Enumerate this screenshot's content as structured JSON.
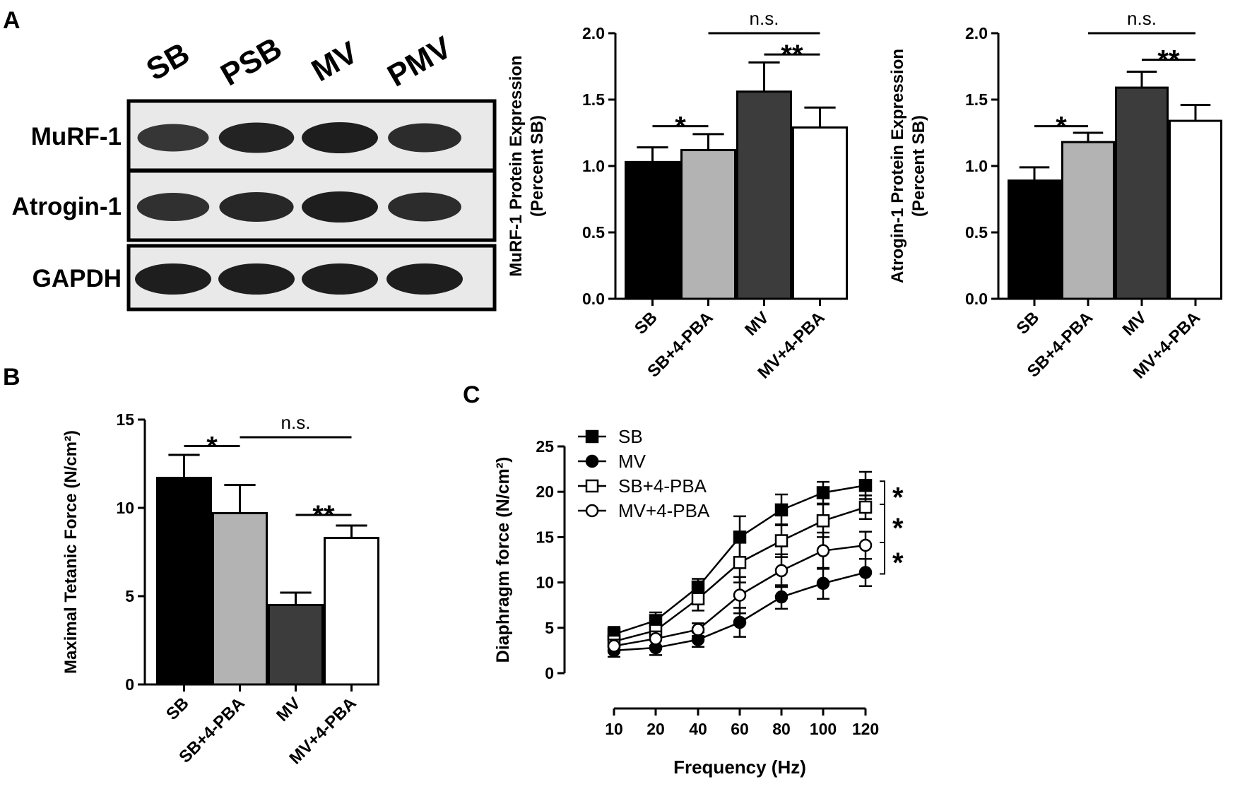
{
  "panels": {
    "a": "A",
    "b": "B",
    "c": "C"
  },
  "colors": {
    "black": "#000000",
    "light_gray": "#b3b3b3",
    "dark_gray": "#3c3c3c",
    "white": "#ffffff",
    "blot_background": "#e9e9e9",
    "band": "#1e1e1e"
  },
  "blot": {
    "lanes": [
      "SB",
      "PSB",
      "MV",
      "PMV"
    ],
    "rows": [
      {
        "label": "MuRF-1",
        "bands": [
          0.75,
          0.95,
          1.0,
          0.85
        ]
      },
      {
        "label": "Atrogin-1",
        "bands": [
          0.8,
          0.9,
          1.0,
          0.85
        ]
      },
      {
        "label": "GAPDH",
        "bands": [
          1.0,
          1.0,
          1.0,
          1.0
        ]
      }
    ]
  },
  "chart_data": [
    {
      "id": "murf1",
      "type": "bar",
      "ylabel": [
        "MuRF-1 Protein Expression",
        "(Percent SB)"
      ],
      "ylim": [
        0,
        2.0
      ],
      "yticks": [
        "0.0",
        "0.5",
        "1.0",
        "1.5",
        "2.0"
      ],
      "categories": [
        "SB",
        "SB+4-PBA",
        "MV",
        "MV+4-PBA"
      ],
      "values": [
        1.03,
        1.12,
        1.56,
        1.29
      ],
      "errors": [
        0.11,
        0.12,
        0.22,
        0.15
      ],
      "fills": [
        "#000000",
        "#b3b3b3",
        "#3c3c3c",
        "#ffffff"
      ],
      "annotations": [
        {
          "from": 0,
          "to": 1,
          "y": 1.3,
          "label": "*"
        },
        {
          "from": 2,
          "to": 3,
          "y": 1.84,
          "label": "**"
        },
        {
          "from": 1,
          "to": 3,
          "y": 2.0,
          "label": "n.s."
        }
      ]
    },
    {
      "id": "atrogin1",
      "type": "bar",
      "ylabel": [
        "Atrogin-1 Protein Expression",
        "(Percent SB)"
      ],
      "ylim": [
        0,
        2.0
      ],
      "yticks": [
        "0.0",
        "0.5",
        "1.0",
        "1.5",
        "2.0"
      ],
      "categories": [
        "SB",
        "SB+4-PBA",
        "MV",
        "MV+4-PBA"
      ],
      "values": [
        0.89,
        1.18,
        1.59,
        1.34
      ],
      "errors": [
        0.1,
        0.07,
        0.12,
        0.12
      ],
      "fills": [
        "#000000",
        "#b3b3b3",
        "#3c3c3c",
        "#ffffff"
      ],
      "annotations": [
        {
          "from": 0,
          "to": 1,
          "y": 1.3,
          "label": "*"
        },
        {
          "from": 2,
          "to": 3,
          "y": 1.8,
          "label": "**"
        },
        {
          "from": 1,
          "to": 3,
          "y": 2.0,
          "label": "n.s."
        }
      ]
    },
    {
      "id": "tetanic",
      "type": "bar",
      "ylabel": [
        "Maximal Tetanic Force (N/cm²)"
      ],
      "ylim": [
        0,
        15
      ],
      "yticks": [
        "0",
        "5",
        "10",
        "15"
      ],
      "categories": [
        "SB",
        "SB+4-PBA",
        "MV",
        "MV+4-PBA"
      ],
      "values": [
        11.7,
        9.7,
        4.5,
        8.3
      ],
      "errors": [
        1.3,
        1.6,
        0.7,
        0.7
      ],
      "fills": [
        "#000000",
        "#b3b3b3",
        "#3c3c3c",
        "#ffffff"
      ],
      "annotations": [
        {
          "from": 0,
          "to": 1,
          "y": 13.5,
          "label": "*"
        },
        {
          "from": 2,
          "to": 3,
          "y": 9.6,
          "label": "**"
        },
        {
          "from": 1,
          "to": 3,
          "y": 14.0,
          "label": "n.s."
        }
      ]
    },
    {
      "id": "force",
      "type": "line",
      "xlabel": "Frequency (Hz)",
      "ylabel": "Diaphragm force (N/cm²)",
      "ylim": [
        0,
        25
      ],
      "yticks": [
        "0",
        "5",
        "10",
        "15",
        "20",
        "25"
      ],
      "x": [
        10,
        20,
        40,
        60,
        80,
        100,
        120
      ],
      "xticks": [
        "10",
        "20",
        "40",
        "60",
        "80",
        "100",
        "120"
      ],
      "series": [
        {
          "name": "SB",
          "marker": "square-filled",
          "values": [
            4.3,
            5.8,
            9.5,
            15.0,
            18.0,
            19.9,
            20.7
          ],
          "errors": [
            0.8,
            0.9,
            0.9,
            2.3,
            1.7,
            1.2,
            1.5
          ]
        },
        {
          "name": "MV",
          "marker": "circle-filled",
          "values": [
            2.5,
            2.8,
            3.7,
            5.6,
            8.4,
            9.9,
            11.1
          ],
          "errors": [
            0.7,
            0.8,
            0.8,
            1.6,
            1.3,
            1.7,
            1.5
          ]
        },
        {
          "name": "SB+4-PBA",
          "marker": "square-open",
          "values": [
            3.5,
            4.7,
            8.2,
            12.2,
            14.6,
            16.8,
            18.3
          ],
          "errors": [
            0.8,
            0.9,
            1.3,
            2.2,
            1.8,
            1.8,
            1.3
          ]
        },
        {
          "name": "MV+4-PBA",
          "marker": "circle-open",
          "values": [
            3.0,
            3.8,
            4.8,
            8.6,
            11.3,
            13.5,
            14.1
          ],
          "errors": [
            0.7,
            0.8,
            0.7,
            2.0,
            1.8,
            2.0,
            1.5
          ]
        }
      ],
      "brackets": [
        {
          "label": "*",
          "from": 0,
          "to": 2
        },
        {
          "label": "*",
          "from": 2,
          "to": 3
        },
        {
          "label": "*",
          "from": 3,
          "to": 1
        }
      ]
    }
  ]
}
